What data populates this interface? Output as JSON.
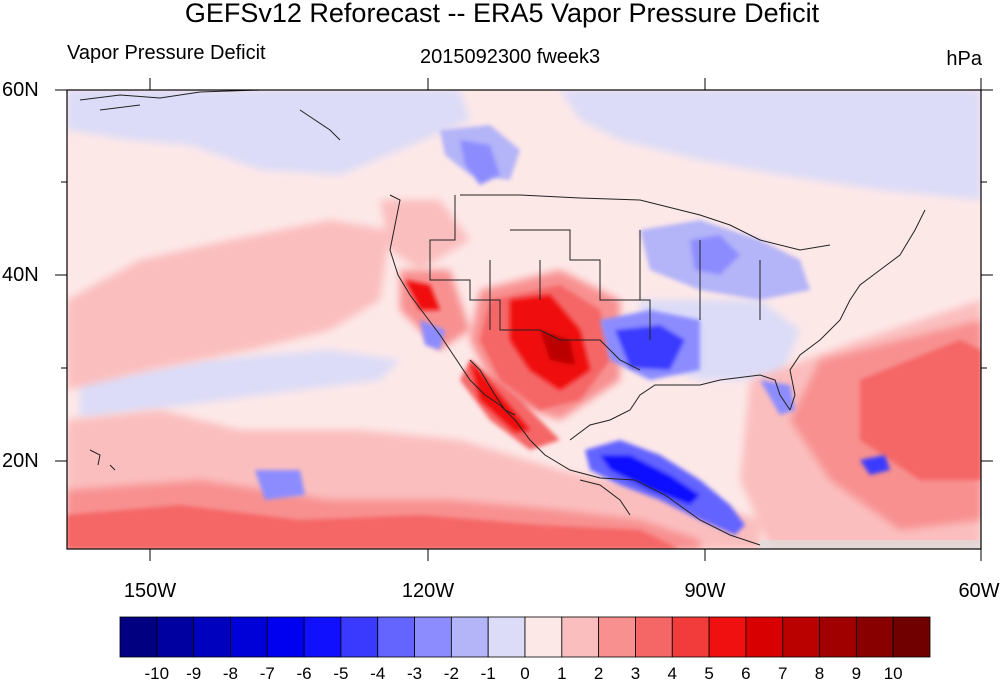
{
  "header": {
    "title": "GEFSv12 Reforecast -- ERA5 Vapor Pressure Deficit",
    "left_label": "Vapor Pressure Deficit",
    "center_label": "2015092300 fweek3",
    "units": "hPa"
  },
  "map": {
    "lat_labels": [
      "60N",
      "40N",
      "20N"
    ],
    "lon_labels": [
      "150W",
      "120W",
      "90W",
      "60W"
    ]
  },
  "colorbar": {
    "labels": [
      "-10",
      "-9",
      "-8",
      "-7",
      "-6",
      "-5",
      "-4",
      "-3",
      "-2",
      "-1",
      "0",
      "1",
      "2",
      "3",
      "4",
      "5",
      "6",
      "7",
      "8",
      "9",
      "10"
    ],
    "colors": [
      "#000080",
      "#0000a0",
      "#0000bf",
      "#0000d8",
      "#0000f0",
      "#1010ff",
      "#3a3aff",
      "#6464ff",
      "#8c8cff",
      "#b4b4f8",
      "#dcdcf8",
      "#fde8e8",
      "#fbbebe",
      "#f89090",
      "#f56666",
      "#f23c3c",
      "#f01010",
      "#d80000",
      "#bb0000",
      "#a00000",
      "#880000",
      "#700000"
    ]
  }
}
